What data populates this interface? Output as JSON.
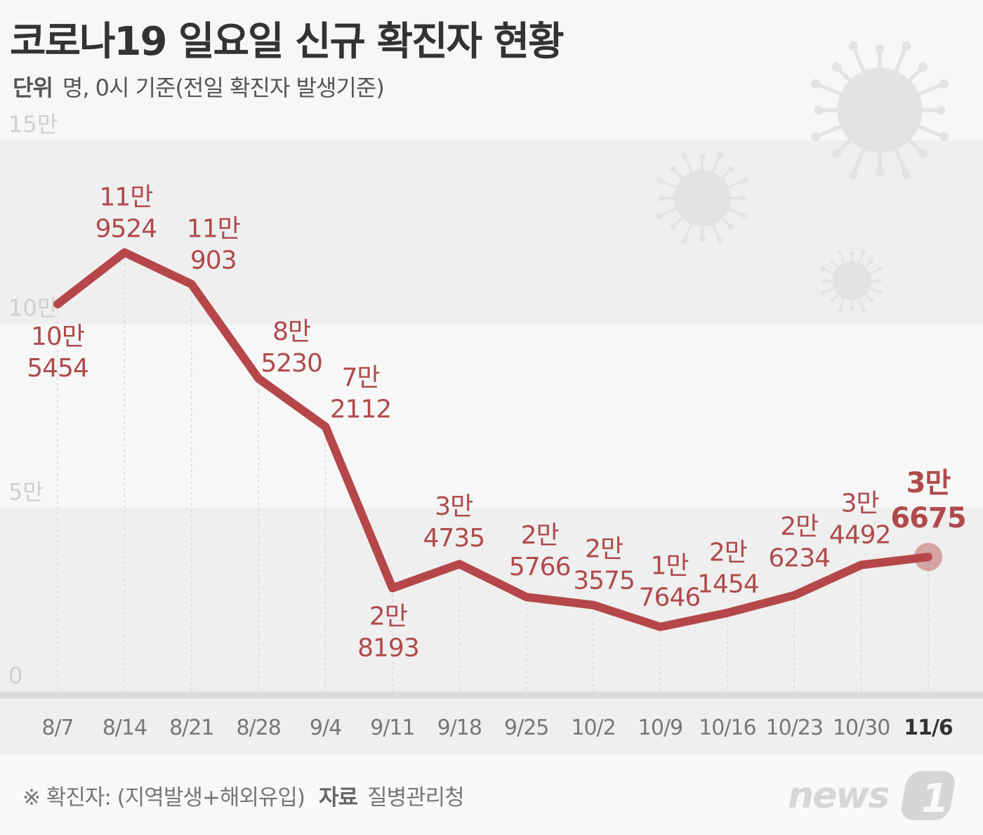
{
  "title": "코로나19 일요일 신규 확진자 현황",
  "subtitle": {
    "unit_label": "단위",
    "unit_text": "명, 0시 기준(전일 확진자 발생기준)"
  },
  "footnote": {
    "note": "※ 확진자: (지역발생+해외유입)",
    "source_label": "자료",
    "source": "질병관리청"
  },
  "logo": "news1",
  "colors": {
    "line": "#b5474a",
    "label": "#b04a4c",
    "band": "#efefef",
    "background": "#f7f7f7"
  },
  "chart_data": {
    "type": "line",
    "title": "코로나19 일요일 신규 확진자 현황",
    "xlabel": "",
    "ylabel": "",
    "ylim": [
      0,
      150000
    ],
    "yticks": [
      0,
      50000,
      100000,
      150000
    ],
    "ytick_labels": [
      "0",
      "5만",
      "10만",
      "15만"
    ],
    "grid": "alternating horizontal bands",
    "categories": [
      "8/7",
      "8/14",
      "8/21",
      "8/28",
      "9/4",
      "9/11",
      "9/18",
      "9/25",
      "10/2",
      "10/9",
      "10/16",
      "10/23",
      "10/30",
      "11/6"
    ],
    "values": [
      105454,
      119524,
      110903,
      85230,
      72112,
      28193,
      34735,
      25766,
      23575,
      17646,
      21454,
      26234,
      34492,
      36675
    ],
    "labels": [
      [
        "10만",
        "5454"
      ],
      [
        "11만",
        "9524"
      ],
      [
        "11만",
        "903"
      ],
      [
        "8만",
        "5230"
      ],
      [
        "7만",
        "2112"
      ],
      [
        "2만",
        "8193"
      ],
      [
        "3만",
        "4735"
      ],
      [
        "2만",
        "5766"
      ],
      [
        "2만",
        "3575"
      ],
      [
        "1만",
        "7646"
      ],
      [
        "2만",
        "1454"
      ],
      [
        "2만",
        "6234"
      ],
      [
        "3만",
        "4492"
      ],
      [
        "3만",
        "6675"
      ]
    ],
    "highlight": "11/6"
  }
}
